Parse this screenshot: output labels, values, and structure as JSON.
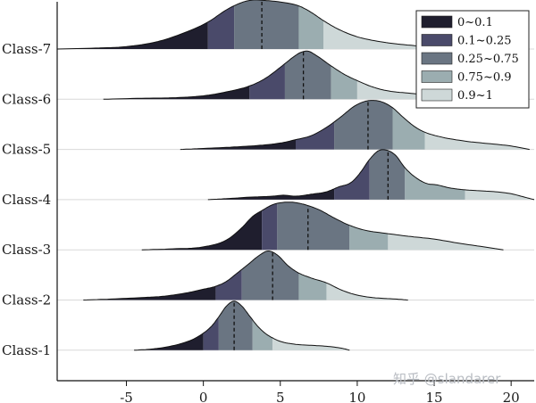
{
  "chart_data": {
    "type": "ridgeline",
    "title": "",
    "xlabel": "",
    "ylabel": "",
    "xlim": [
      -9.5,
      21.5
    ],
    "xticks": [
      -5,
      0,
      5,
      10,
      15,
      20
    ],
    "xtick_labels": [
      "-5",
      "0",
      "5",
      "10",
      "15",
      "20"
    ],
    "categories": [
      "Class-1",
      "Class-2",
      "Class-3",
      "Class-4",
      "Class-5",
      "Class-6",
      "Class-7"
    ],
    "legend": {
      "placement": "top-right",
      "entries": [
        {
          "label": "0~0.1",
          "color": "#1f1e2e"
        },
        {
          "label": "0.1~0.25",
          "color": "#4a4a6a"
        },
        {
          "label": "0.25~0.75",
          "color": "#6a7582"
        },
        {
          "label": "0.75~0.9",
          "color": "#9badb0"
        },
        {
          "label": "0.9~1",
          "color": "#ced8d8"
        }
      ]
    },
    "quantile_colors": [
      "#1f1e2e",
      "#4a4a6a",
      "#6a7582",
      "#9badb0",
      "#ced8d8"
    ],
    "series": [
      {
        "name": "Class-1",
        "range": [
          -4.5,
          9.5
        ],
        "median": 2.0,
        "quantiles": [
          0.0,
          1.0,
          3.2,
          4.5
        ],
        "density": [
          [
            -4.5,
            0
          ],
          [
            -3.5,
            0.02
          ],
          [
            -2.5,
            0.06
          ],
          [
            -1.5,
            0.13
          ],
          [
            -0.5,
            0.25
          ],
          [
            0.5,
            0.48
          ],
          [
            1.0,
            0.68
          ],
          [
            1.5,
            0.9
          ],
          [
            2.0,
            1.0
          ],
          [
            2.5,
            0.9
          ],
          [
            3.0,
            0.7
          ],
          [
            3.5,
            0.5
          ],
          [
            4.0,
            0.35
          ],
          [
            4.5,
            0.25
          ],
          [
            5.0,
            0.18
          ],
          [
            6.0,
            0.12
          ],
          [
            7.0,
            0.1
          ],
          [
            8.0,
            0.08
          ],
          [
            9.0,
            0.04
          ],
          [
            9.5,
            0
          ]
        ]
      },
      {
        "name": "Class-2",
        "range": [
          -7.8,
          13.3
        ],
        "median": 4.5,
        "quantiles": [
          0.8,
          2.5,
          6.2,
          8.0
        ],
        "density": [
          [
            -7.8,
            0
          ],
          [
            -6.0,
            0.02
          ],
          [
            -4.0,
            0.05
          ],
          [
            -2.5,
            0.08
          ],
          [
            -1.0,
            0.15
          ],
          [
            0.0,
            0.22
          ],
          [
            0.8,
            0.28
          ],
          [
            1.5,
            0.38
          ],
          [
            2.2,
            0.55
          ],
          [
            3.0,
            0.75
          ],
          [
            3.5,
            0.88
          ],
          [
            4.2,
            1.0
          ],
          [
            4.8,
            0.92
          ],
          [
            5.5,
            0.7
          ],
          [
            6.2,
            0.55
          ],
          [
            7.0,
            0.45
          ],
          [
            8.0,
            0.35
          ],
          [
            9.0,
            0.2
          ],
          [
            10.0,
            0.1
          ],
          [
            11.0,
            0.05
          ],
          [
            12.5,
            0.02
          ],
          [
            13.3,
            0
          ]
        ]
      },
      {
        "name": "Class-3",
        "range": [
          -4.0,
          19.5
        ],
        "median": 6.8,
        "quantiles": [
          3.8,
          4.8,
          9.5,
          12.0
        ],
        "density": [
          [
            -4.0,
            0
          ],
          [
            -2.0,
            0.02
          ],
          [
            0.0,
            0.06
          ],
          [
            1.5,
            0.2
          ],
          [
            2.5,
            0.45
          ],
          [
            3.2,
            0.68
          ],
          [
            3.8,
            0.8
          ],
          [
            4.5,
            0.92
          ],
          [
            5.0,
            0.96
          ],
          [
            5.8,
            0.97
          ],
          [
            6.5,
            0.93
          ],
          [
            7.5,
            0.82
          ],
          [
            8.5,
            0.65
          ],
          [
            9.5,
            0.5
          ],
          [
            10.5,
            0.4
          ],
          [
            12.0,
            0.33
          ],
          [
            13.5,
            0.27
          ],
          [
            15.0,
            0.22
          ],
          [
            16.5,
            0.14
          ],
          [
            18.0,
            0.07
          ],
          [
            19.5,
            0
          ]
        ]
      },
      {
        "name": "Class-4",
        "range": [
          0.3,
          21.5
        ],
        "median": 12.0,
        "quantiles": [
          8.5,
          10.8,
          13.1,
          17.0
        ],
        "density": [
          [
            0.3,
            0
          ],
          [
            1.5,
            0.02
          ],
          [
            3.0,
            0.05
          ],
          [
            4.5,
            0.07
          ],
          [
            5.2,
            0.09
          ],
          [
            6.0,
            0.07
          ],
          [
            7.0,
            0.11
          ],
          [
            8.0,
            0.16
          ],
          [
            8.8,
            0.26
          ],
          [
            9.6,
            0.35
          ],
          [
            10.2,
            0.55
          ],
          [
            10.8,
            0.82
          ],
          [
            11.4,
            1.0
          ],
          [
            12.0,
            1.0
          ],
          [
            12.5,
            0.9
          ],
          [
            13.1,
            0.65
          ],
          [
            13.8,
            0.45
          ],
          [
            14.5,
            0.33
          ],
          [
            15.2,
            0.3
          ],
          [
            16.0,
            0.24
          ],
          [
            17.0,
            0.2
          ],
          [
            18.0,
            0.18
          ],
          [
            19.0,
            0.16
          ],
          [
            20.0,
            0.12
          ],
          [
            21.0,
            0.04
          ],
          [
            21.5,
            0
          ]
        ]
      },
      {
        "name": "Class-5",
        "range": [
          -1.5,
          21.2
        ],
        "median": 10.7,
        "quantiles": [
          6.0,
          8.5,
          12.3,
          14.4
        ],
        "density": [
          [
            -1.5,
            0
          ],
          [
            0.0,
            0.02
          ],
          [
            2.0,
            0.05
          ],
          [
            3.5,
            0.08
          ],
          [
            5.0,
            0.13
          ],
          [
            6.0,
            0.2
          ],
          [
            7.0,
            0.28
          ],
          [
            8.0,
            0.45
          ],
          [
            9.0,
            0.68
          ],
          [
            9.8,
            0.88
          ],
          [
            10.5,
            0.98
          ],
          [
            11.0,
            1.0
          ],
          [
            11.6,
            0.97
          ],
          [
            12.3,
            0.85
          ],
          [
            13.0,
            0.65
          ],
          [
            13.8,
            0.45
          ],
          [
            14.4,
            0.35
          ],
          [
            15.5,
            0.25
          ],
          [
            17.0,
            0.17
          ],
          [
            18.5,
            0.12
          ],
          [
            20.0,
            0.07
          ],
          [
            21.2,
            0
          ]
        ]
      },
      {
        "name": "Class-6",
        "range": [
          -6.5,
          16.5
        ],
        "median": 6.5,
        "quantiles": [
          3.0,
          5.3,
          8.3,
          10.0
        ],
        "density": [
          [
            -6.5,
            0
          ],
          [
            -4.0,
            0.02
          ],
          [
            -2.0,
            0.03
          ],
          [
            0.0,
            0.07
          ],
          [
            1.5,
            0.15
          ],
          [
            3.0,
            0.27
          ],
          [
            4.0,
            0.42
          ],
          [
            5.0,
            0.65
          ],
          [
            5.8,
            0.85
          ],
          [
            6.3,
            0.95
          ],
          [
            6.8,
            0.98
          ],
          [
            7.3,
            0.9
          ],
          [
            8.3,
            0.68
          ],
          [
            9.2,
            0.5
          ],
          [
            10.0,
            0.38
          ],
          [
            11.0,
            0.25
          ],
          [
            12.0,
            0.17
          ],
          [
            13.5,
            0.12
          ],
          [
            15.0,
            0.07
          ],
          [
            16.5,
            0
          ]
        ]
      },
      {
        "name": "Class-7",
        "range": [
          -9.5,
          16.5
        ],
        "median": 3.8,
        "quantiles": [
          0.3,
          2.0,
          6.2,
          7.8
        ],
        "density": [
          [
            -9.5,
            0
          ],
          [
            -7.0,
            0.02
          ],
          [
            -5.0,
            0.05
          ],
          [
            -3.0,
            0.15
          ],
          [
            -1.5,
            0.3
          ],
          [
            0.3,
            0.55
          ],
          [
            1.5,
            0.8
          ],
          [
            2.5,
            0.95
          ],
          [
            3.2,
            1.0
          ],
          [
            4.0,
            0.99
          ],
          [
            5.0,
            0.96
          ],
          [
            6.2,
            0.88
          ],
          [
            7.0,
            0.75
          ],
          [
            7.8,
            0.58
          ],
          [
            8.8,
            0.4
          ],
          [
            10.0,
            0.25
          ],
          [
            11.5,
            0.15
          ],
          [
            13.0,
            0.09
          ],
          [
            15.0,
            0.04
          ],
          [
            16.5,
            0
          ]
        ]
      }
    ]
  },
  "watermark": "知乎 @slandarer"
}
